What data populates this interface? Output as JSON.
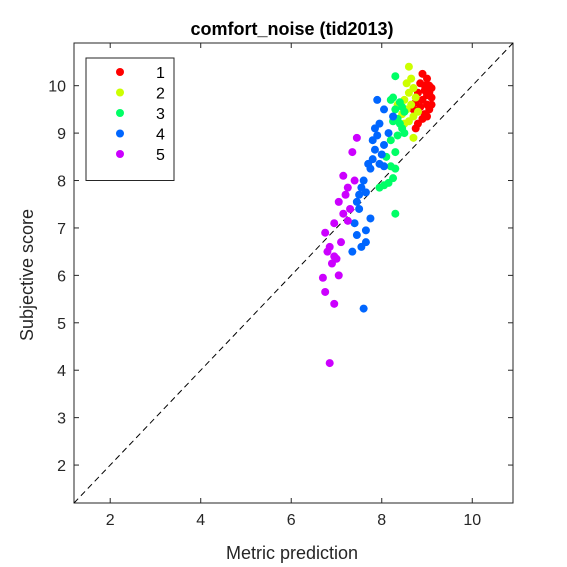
{
  "chart_data": {
    "type": "scatter",
    "title": "comfort_noise (tid2013)",
    "xlabel": "Metric prediction",
    "ylabel": "Subjective score",
    "xlim": [
      1.2,
      10.9
    ],
    "ylim": [
      1.2,
      10.9
    ],
    "xticks": [
      2,
      4,
      6,
      8,
      10
    ],
    "yticks": [
      2,
      3,
      4,
      5,
      6,
      7,
      8,
      9,
      10
    ],
    "grid": false,
    "reference_line": "y = x (dashed)",
    "legend_placement": "top-left",
    "series": [
      {
        "name": "1",
        "color": "#ff0000",
        "points": [
          [
            8.9,
            10.25
          ],
          [
            9.0,
            10.15
          ],
          [
            8.85,
            10.05
          ],
          [
            9.05,
            10.0
          ],
          [
            8.95,
            9.9
          ],
          [
            9.1,
            9.95
          ],
          [
            8.8,
            9.85
          ],
          [
            9.0,
            9.8
          ],
          [
            8.9,
            9.7
          ],
          [
            9.1,
            9.75
          ],
          [
            8.75,
            9.65
          ],
          [
            9.0,
            9.6
          ],
          [
            8.85,
            9.55
          ],
          [
            9.05,
            9.5
          ],
          [
            8.7,
            9.5
          ],
          [
            8.95,
            9.4
          ],
          [
            9.0,
            9.35
          ],
          [
            8.9,
            9.3
          ],
          [
            8.8,
            9.2
          ],
          [
            8.75,
            9.1
          ],
          [
            9.05,
            9.85
          ],
          [
            8.95,
            10.0
          ],
          [
            9.1,
            9.6
          ]
        ]
      },
      {
        "name": "2",
        "color": "#ccff00",
        "points": [
          [
            8.6,
            10.4
          ],
          [
            8.65,
            10.15
          ],
          [
            8.55,
            10.05
          ],
          [
            8.7,
            9.95
          ],
          [
            8.6,
            9.85
          ],
          [
            8.75,
            9.75
          ],
          [
            8.5,
            9.7
          ],
          [
            8.65,
            9.6
          ],
          [
            8.55,
            9.5
          ],
          [
            8.8,
            9.45
          ],
          [
            8.45,
            9.4
          ],
          [
            8.7,
            9.35
          ],
          [
            8.6,
            9.25
          ],
          [
            8.5,
            9.2
          ],
          [
            8.7,
            8.9
          ],
          [
            8.35,
            9.6
          ]
        ]
      },
      {
        "name": "3",
        "color": "#00ff66",
        "points": [
          [
            8.3,
            10.2
          ],
          [
            8.25,
            9.75
          ],
          [
            8.2,
            9.7
          ],
          [
            8.4,
            9.65
          ],
          [
            8.45,
            9.55
          ],
          [
            8.3,
            9.5
          ],
          [
            8.5,
            9.45
          ],
          [
            8.35,
            9.3
          ],
          [
            8.25,
            9.25
          ],
          [
            8.4,
            9.2
          ],
          [
            8.45,
            9.1
          ],
          [
            8.5,
            9.0
          ],
          [
            8.35,
            8.95
          ],
          [
            8.2,
            8.85
          ],
          [
            8.3,
            8.6
          ],
          [
            8.2,
            8.3
          ],
          [
            8.3,
            8.25
          ],
          [
            8.25,
            8.05
          ],
          [
            8.15,
            7.95
          ],
          [
            8.05,
            7.9
          ],
          [
            7.95,
            7.85
          ],
          [
            8.3,
            7.3
          ],
          [
            8.1,
            8.5
          ]
        ]
      },
      {
        "name": "4",
        "color": "#0066ff",
        "points": [
          [
            7.9,
            9.7
          ],
          [
            8.05,
            9.5
          ],
          [
            8.25,
            9.35
          ],
          [
            7.95,
            9.2
          ],
          [
            7.85,
            9.1
          ],
          [
            8.15,
            9.0
          ],
          [
            7.9,
            8.95
          ],
          [
            7.8,
            8.85
          ],
          [
            8.05,
            8.75
          ],
          [
            7.85,
            8.65
          ],
          [
            8.0,
            8.55
          ],
          [
            7.8,
            8.45
          ],
          [
            7.95,
            8.35
          ],
          [
            7.7,
            8.35
          ],
          [
            8.05,
            8.3
          ],
          [
            7.75,
            8.25
          ],
          [
            7.6,
            8.0
          ],
          [
            7.55,
            7.85
          ],
          [
            7.65,
            7.75
          ],
          [
            7.5,
            7.7
          ],
          [
            7.45,
            7.55
          ],
          [
            7.5,
            7.4
          ],
          [
            7.75,
            7.2
          ],
          [
            7.4,
            7.1
          ],
          [
            7.65,
            6.95
          ],
          [
            7.45,
            6.85
          ],
          [
            7.65,
            6.7
          ],
          [
            7.55,
            6.6
          ],
          [
            7.35,
            6.5
          ],
          [
            7.6,
            5.3
          ]
        ]
      },
      {
        "name": "5",
        "color": "#cc00ff",
        "points": [
          [
            7.45,
            8.9
          ],
          [
            7.35,
            8.6
          ],
          [
            7.15,
            8.1
          ],
          [
            7.4,
            8.0
          ],
          [
            7.25,
            7.85
          ],
          [
            7.2,
            7.7
          ],
          [
            7.05,
            7.55
          ],
          [
            7.3,
            7.4
          ],
          [
            7.15,
            7.3
          ],
          [
            7.25,
            7.15
          ],
          [
            6.95,
            7.1
          ],
          [
            6.75,
            6.9
          ],
          [
            7.1,
            6.7
          ],
          [
            6.85,
            6.6
          ],
          [
            6.8,
            6.5
          ],
          [
            6.95,
            6.4
          ],
          [
            7.0,
            6.35
          ],
          [
            6.9,
            6.25
          ],
          [
            7.05,
            6.0
          ],
          [
            6.7,
            5.95
          ],
          [
            6.75,
            5.65
          ],
          [
            6.95,
            5.4
          ],
          [
            6.85,
            4.15
          ]
        ]
      }
    ]
  }
}
